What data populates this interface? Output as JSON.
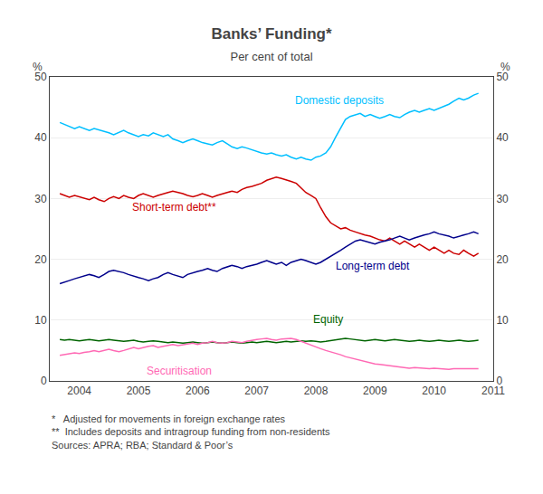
{
  "chart_data": {
    "type": "line",
    "title": "Banks’ Funding*",
    "subtitle": "Per cent of total",
    "ylabel": "%",
    "y2label": "%",
    "footnotes": [
      "*   Adjusted for movements in foreign exchange rates",
      "**  Includes deposits and intragroup funding from non-residents",
      "Sources: APRA; RBA; Standard & Poor’s"
    ],
    "xlim": [
      2003.5,
      2011
    ],
    "xticks": [
      2004,
      2005,
      2006,
      2007,
      2008,
      2009,
      2010,
      2011
    ],
    "ylim": [
      0,
      50
    ],
    "yticks": [
      0,
      10,
      20,
      30,
      40,
      50
    ],
    "y2lim": [
      0,
      50
    ],
    "y2ticks": [
      0,
      10,
      20,
      30,
      40,
      50
    ],
    "grid": true,
    "x": [
      2003.67,
      2003.75,
      2003.83,
      2003.92,
      2004.0,
      2004.08,
      2004.17,
      2004.25,
      2004.33,
      2004.42,
      2004.5,
      2004.58,
      2004.67,
      2004.75,
      2004.83,
      2004.92,
      2005.0,
      2005.08,
      2005.17,
      2005.25,
      2005.33,
      2005.42,
      2005.5,
      2005.58,
      2005.67,
      2005.75,
      2005.83,
      2005.92,
      2006.0,
      2006.08,
      2006.17,
      2006.25,
      2006.33,
      2006.42,
      2006.5,
      2006.58,
      2006.67,
      2006.75,
      2006.83,
      2006.92,
      2007.0,
      2007.08,
      2007.17,
      2007.25,
      2007.33,
      2007.42,
      2007.5,
      2007.58,
      2007.67,
      2007.75,
      2007.83,
      2007.92,
      2008.0,
      2008.08,
      2008.17,
      2008.25,
      2008.33,
      2008.42,
      2008.5,
      2008.58,
      2008.67,
      2008.75,
      2008.83,
      2008.92,
      2009.0,
      2009.08,
      2009.17,
      2009.25,
      2009.33,
      2009.42,
      2009.5,
      2009.58,
      2009.67,
      2009.75,
      2009.83,
      2009.92,
      2010.0,
      2010.08,
      2010.17,
      2010.25,
      2010.33,
      2010.42,
      2010.5,
      2010.58,
      2010.67,
      2010.75
    ],
    "series": [
      {
        "name": "Domestic deposits",
        "color": "#00BFFF",
        "values": [
          42.5,
          42.2,
          41.8,
          41.5,
          41.8,
          41.5,
          41.2,
          41.5,
          41.3,
          41.0,
          40.8,
          40.5,
          40.9,
          41.2,
          40.8,
          40.5,
          40.2,
          40.5,
          40.3,
          40.8,
          40.5,
          40.2,
          40.5,
          39.8,
          39.5,
          39.2,
          39.5,
          39.8,
          39.5,
          39.2,
          39.0,
          38.8,
          39.2,
          39.5,
          39.0,
          38.5,
          38.2,
          38.5,
          38.3,
          38.0,
          37.8,
          37.5,
          37.3,
          37.5,
          37.2,
          37.0,
          37.2,
          36.8,
          36.5,
          36.8,
          36.5,
          36.3,
          36.8,
          37.0,
          37.5,
          38.5,
          40.0,
          41.5,
          43.0,
          43.5,
          43.8,
          44.0,
          43.5,
          43.8,
          43.5,
          43.2,
          43.5,
          43.8,
          43.5,
          43.3,
          43.8,
          44.2,
          44.5,
          44.2,
          44.5,
          44.8,
          44.5,
          44.8,
          45.2,
          45.5,
          46.0,
          46.5,
          46.2,
          46.5,
          47.0,
          47.3
        ]
      },
      {
        "name": "Short-term debt**",
        "color": "#CC0000",
        "values": [
          30.8,
          30.5,
          30.2,
          30.5,
          30.3,
          30.0,
          29.8,
          30.2,
          29.8,
          29.5,
          30.0,
          30.3,
          30.0,
          30.5,
          30.2,
          30.0,
          30.5,
          30.8,
          30.5,
          30.2,
          30.5,
          30.8,
          31.0,
          31.2,
          31.0,
          30.8,
          30.5,
          30.3,
          30.5,
          30.8,
          30.5,
          30.2,
          30.5,
          30.8,
          31.0,
          31.2,
          31.0,
          31.5,
          31.8,
          32.0,
          32.3,
          32.5,
          33.0,
          33.2,
          33.5,
          33.3,
          33.0,
          32.8,
          32.5,
          31.8,
          31.0,
          30.5,
          30.0,
          28.5,
          27.0,
          26.0,
          25.5,
          25.0,
          25.2,
          24.8,
          24.5,
          24.2,
          24.0,
          23.8,
          23.5,
          23.2,
          23.0,
          23.5,
          23.0,
          22.5,
          23.0,
          22.5,
          22.0,
          22.5,
          22.0,
          21.5,
          22.0,
          21.5,
          21.0,
          21.5,
          21.0,
          20.8,
          21.5,
          21.0,
          20.5,
          21.0
        ]
      },
      {
        "name": "Long-term debt",
        "color": "#00008B",
        "values": [
          16.0,
          16.2,
          16.5,
          16.8,
          17.0,
          17.2,
          17.5,
          17.3,
          17.0,
          17.5,
          18.0,
          18.2,
          18.0,
          17.8,
          17.5,
          17.2,
          17.0,
          16.8,
          16.5,
          16.8,
          17.0,
          17.5,
          17.8,
          17.5,
          17.2,
          17.0,
          17.5,
          17.8,
          18.0,
          18.2,
          18.5,
          18.2,
          18.0,
          18.5,
          18.8,
          19.0,
          18.8,
          18.5,
          18.8,
          19.0,
          19.2,
          19.5,
          19.8,
          19.5,
          19.2,
          19.5,
          19.0,
          19.5,
          19.8,
          20.0,
          19.8,
          19.5,
          19.2,
          19.5,
          20.0,
          20.5,
          21.0,
          21.5,
          22.0,
          22.5,
          23.0,
          23.2,
          23.0,
          22.8,
          22.5,
          22.8,
          23.0,
          23.2,
          23.5,
          23.8,
          23.5,
          23.2,
          23.5,
          23.8,
          24.0,
          24.2,
          24.5,
          24.2,
          24.0,
          23.8,
          23.5,
          23.8,
          24.0,
          24.2,
          24.5,
          24.2
        ]
      },
      {
        "name": "Equity",
        "color": "#006400",
        "values": [
          6.8,
          6.7,
          6.8,
          6.7,
          6.6,
          6.7,
          6.8,
          6.7,
          6.6,
          6.7,
          6.8,
          6.7,
          6.6,
          6.5,
          6.6,
          6.7,
          6.5,
          6.4,
          6.5,
          6.6,
          6.5,
          6.4,
          6.3,
          6.4,
          6.3,
          6.2,
          6.3,
          6.4,
          6.3,
          6.2,
          6.3,
          6.4,
          6.3,
          6.2,
          6.3,
          6.4,
          6.3,
          6.2,
          6.3,
          6.4,
          6.3,
          6.4,
          6.5,
          6.4,
          6.3,
          6.4,
          6.5,
          6.4,
          6.5,
          6.6,
          6.5,
          6.6,
          6.5,
          6.4,
          6.5,
          6.6,
          6.7,
          6.8,
          7.0,
          6.9,
          6.8,
          6.7,
          6.6,
          6.7,
          6.8,
          6.7,
          6.6,
          6.7,
          6.8,
          6.7,
          6.6,
          6.5,
          6.6,
          6.7,
          6.6,
          6.5,
          6.6,
          6.7,
          6.6,
          6.5,
          6.6,
          6.7,
          6.6,
          6.5,
          6.6,
          6.7
        ]
      },
      {
        "name": "Securitisation",
        "color": "#FF69B4",
        "values": [
          4.2,
          4.3,
          4.5,
          4.6,
          4.5,
          4.7,
          4.8,
          5.0,
          4.8,
          5.0,
          5.2,
          5.0,
          4.8,
          5.0,
          5.2,
          5.5,
          5.3,
          5.5,
          5.7,
          5.8,
          5.5,
          5.7,
          5.8,
          6.0,
          5.8,
          5.9,
          6.0,
          6.2,
          6.0,
          6.2,
          6.3,
          6.5,
          6.3,
          6.2,
          6.3,
          6.5,
          6.4,
          6.3,
          6.5,
          6.7,
          6.8,
          6.9,
          7.0,
          6.8,
          6.7,
          6.9,
          7.0,
          7.0,
          6.8,
          6.5,
          6.2,
          5.8,
          5.5,
          5.3,
          5.0,
          4.8,
          4.5,
          4.3,
          4.0,
          3.8,
          3.6,
          3.4,
          3.2,
          3.0,
          2.8,
          2.7,
          2.6,
          2.5,
          2.4,
          2.3,
          2.2,
          2.1,
          2.2,
          2.1,
          2.0,
          2.0,
          2.1,
          2.0,
          2.0,
          1.9,
          2.0,
          2.0,
          1.9,
          2.0,
          2.0,
          2.0
        ]
      }
    ],
    "annotations": [
      {
        "text": "Domestic deposits",
        "x": 2008.4,
        "y": 44.8,
        "color": "#00BFFF"
      },
      {
        "text": "Short-term debt**",
        "x": 2005.6,
        "y": 27.2,
        "color": "#CC0000"
      },
      {
        "text": "Long-term debt",
        "x": 2008.3,
        "y": 17.5,
        "color": "#00008B"
      },
      {
        "text": "Equity",
        "x": 2008.2,
        "y": 8.8,
        "color": "#006400"
      },
      {
        "text": "Securitisation",
        "x": 2005.1,
        "y": 3.0,
        "color": "#FF69B4"
      }
    ]
  }
}
